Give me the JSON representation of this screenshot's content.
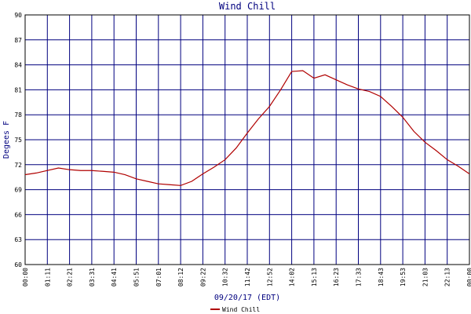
{
  "chart_data": {
    "type": "line",
    "title": "Wind Chill",
    "xlabel": "09/20/17 (EDT)",
    "ylabel": "Degees F",
    "xlim": [
      0,
      1404
    ],
    "ylim": [
      60,
      90
    ],
    "yticks": [
      60,
      63,
      66,
      69,
      72,
      75,
      78,
      81,
      84,
      87,
      90
    ],
    "xticks": [
      {
        "value": 0,
        "label": "00:00"
      },
      {
        "value": 70.2,
        "label": "01:11"
      },
      {
        "value": 140.4,
        "label": "02:21"
      },
      {
        "value": 210.6,
        "label": "03:31"
      },
      {
        "value": 280.8,
        "label": "04:41"
      },
      {
        "value": 351,
        "label": "05:51"
      },
      {
        "value": 421.2,
        "label": "07:01"
      },
      {
        "value": 491.4,
        "label": "08:12"
      },
      {
        "value": 561.6,
        "label": "09:22"
      },
      {
        "value": 631.8,
        "label": "10:32"
      },
      {
        "value": 702,
        "label": "11:42"
      },
      {
        "value": 772.2,
        "label": "12:52"
      },
      {
        "value": 842.4,
        "label": "14:02"
      },
      {
        "value": 912.6,
        "label": "15:13"
      },
      {
        "value": 982.8,
        "label": "16:23"
      },
      {
        "value": 1053,
        "label": "17:33"
      },
      {
        "value": 1123.2,
        "label": "18:43"
      },
      {
        "value": 1193.4,
        "label": "19:53"
      },
      {
        "value": 1263.6,
        "label": "21:03"
      },
      {
        "value": 1333.8,
        "label": "22:13"
      },
      {
        "value": 1404,
        "label": "00:00"
      }
    ],
    "grid": true,
    "grid_color": "#00007f",
    "x": [
      0,
      35.1,
      70.2,
      105.3,
      140.4,
      175.5,
      210.6,
      245.7,
      280.8,
      315.9,
      351,
      386.1,
      421.2,
      456.3,
      491.4,
      526.5,
      561.6,
      596.7,
      631.8,
      666.9,
      702,
      737.1,
      772.2,
      807.3,
      842.4,
      877.5,
      912.6,
      947.7,
      982.8,
      1017.9,
      1053,
      1088.1,
      1123.2,
      1158.3,
      1193.4,
      1228.5,
      1263.6,
      1298.7,
      1333.8,
      1368.9,
      1404
    ],
    "series": [
      {
        "name": "Wind Chill",
        "color": "#b00000",
        "values": [
          70.8,
          71.0,
          71.3,
          71.6,
          71.4,
          71.3,
          71.3,
          71.2,
          71.1,
          70.8,
          70.3,
          70.0,
          69.7,
          69.6,
          69.5,
          70.0,
          70.9,
          71.7,
          72.6,
          74.0,
          75.8,
          77.5,
          79.0,
          81.0,
          83.2,
          83.3,
          82.4,
          82.8,
          82.2,
          81.6,
          81.1,
          80.8,
          80.2,
          79.0,
          77.7,
          76.0,
          74.7,
          73.7,
          72.6,
          71.8,
          70.9
        ]
      }
    ]
  }
}
